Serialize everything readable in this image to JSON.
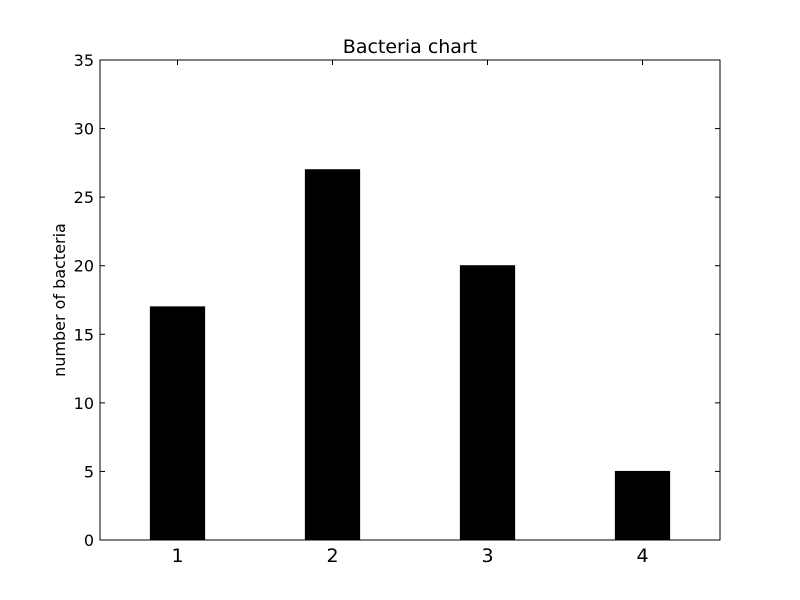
{
  "chart_data": {
    "type": "bar",
    "title": "Bacteria chart",
    "xlabel": "",
    "ylabel": "number of bacteria",
    "categories": [
      "1",
      "2",
      "3",
      "4"
    ],
    "values": [
      17,
      27,
      20,
      5
    ],
    "ylim": [
      0,
      35
    ],
    "yticks": [
      "0",
      "5",
      "10",
      "15",
      "20",
      "25",
      "30",
      "35"
    ],
    "bar_color": "#000000",
    "grid": false
  }
}
